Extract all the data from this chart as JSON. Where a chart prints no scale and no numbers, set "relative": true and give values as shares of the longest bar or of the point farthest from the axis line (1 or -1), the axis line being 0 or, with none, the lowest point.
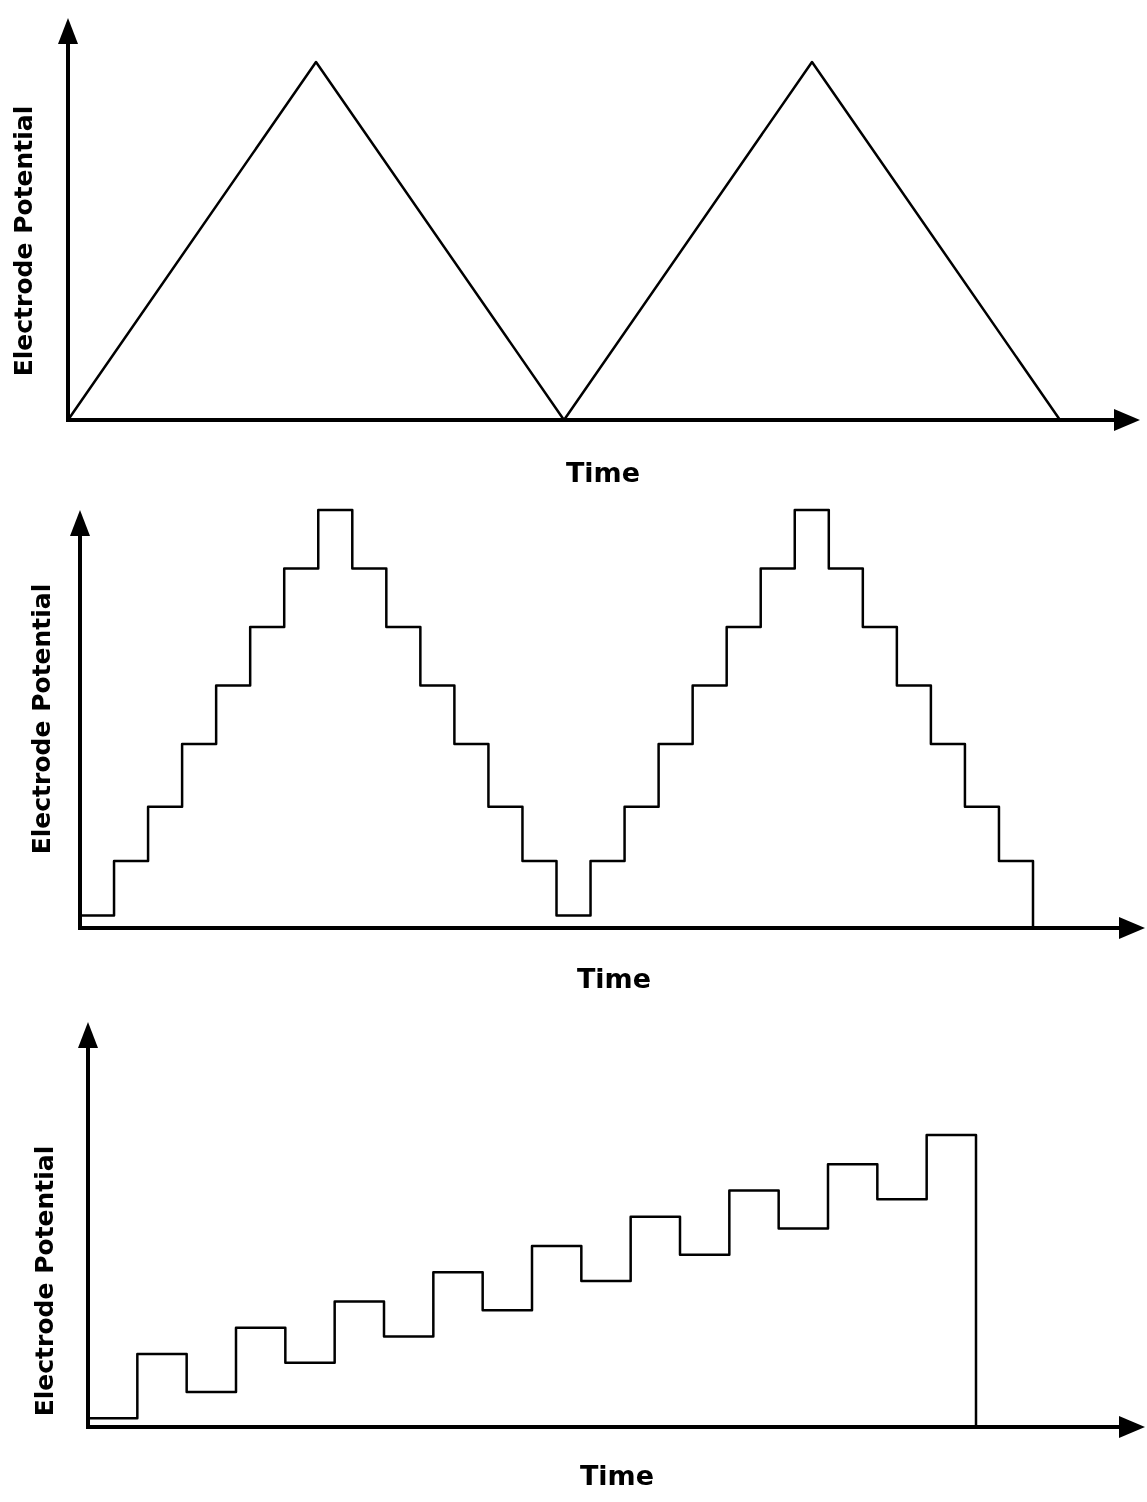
{
  "chart_data": [
    {
      "type": "line",
      "relative": true,
      "xlabel": "Time",
      "ylabel": "Electrode Potential",
      "color": "#000000",
      "categories": [
        null,
        null,
        null,
        null,
        null
      ],
      "values": [
        0,
        1,
        0,
        1,
        0
      ]
    },
    {
      "type": "step",
      "relative": true,
      "xlabel": "Time",
      "ylabel": "Electrode Potential",
      "color": "#000000",
      "categories": [
        null,
        null,
        null,
        null,
        null,
        null,
        null,
        null,
        null,
        null,
        null,
        null,
        null,
        null,
        null,
        null,
        null,
        null,
        null,
        null,
        null,
        null,
        null,
        null,
        null,
        null,
        null,
        null,
        null
      ],
      "values": [
        0.03,
        0.16,
        0.29,
        0.44,
        0.58,
        0.72,
        0.86,
        1,
        0.86,
        0.72,
        0.58,
        0.44,
        0.29,
        0.16,
        0.03,
        0.16,
        0.29,
        0.44,
        0.58,
        0.72,
        0.86,
        1,
        0.86,
        0.72,
        0.58,
        0.44,
        0.29,
        0.16,
        0
      ]
    },
    {
      "type": "step",
      "relative": true,
      "xlabel": "Time",
      "ylabel": "Electrode Potential",
      "color": "#000000",
      "categories": [
        null,
        null,
        null,
        null,
        null,
        null,
        null,
        null,
        null,
        null,
        null,
        null,
        null,
        null,
        null,
        null,
        null,
        null,
        null
      ],
      "values": [
        0.03,
        0.25,
        0.12,
        0.34,
        0.22,
        0.43,
        0.31,
        0.53,
        0.4,
        0.62,
        0.5,
        0.72,
        0.59,
        0.81,
        0.68,
        0.9,
        0.78,
        1,
        0
      ]
    }
  ]
}
